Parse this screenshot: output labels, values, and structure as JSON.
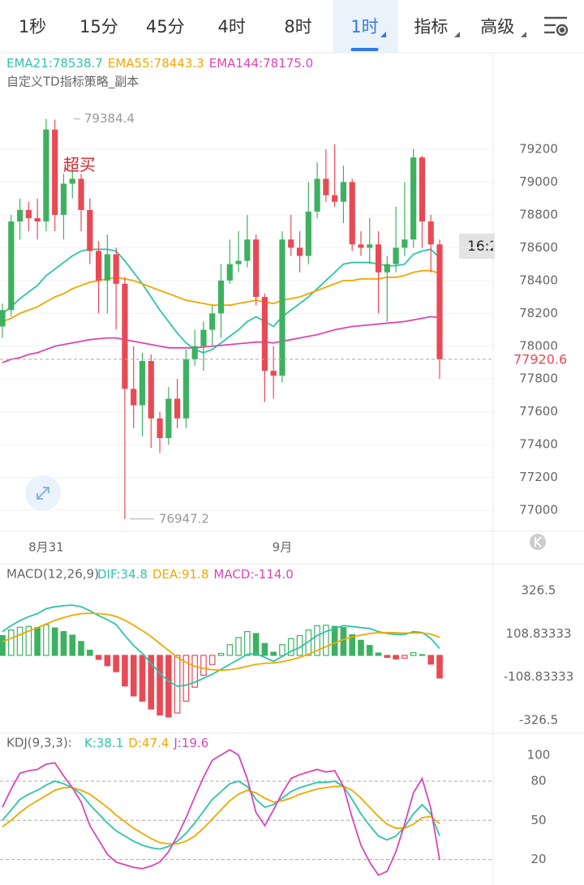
{
  "tabs": {
    "items": [
      "1秒",
      "15分",
      "45分",
      "4时",
      "8时",
      "1时",
      "指标",
      "高级"
    ],
    "selected": 5
  },
  "chart_data": [
    {
      "type": "candlestick",
      "subtitle": "自定义TD指标策略_副本",
      "annotation": "超买",
      "time_label": "16:2",
      "categories": [
        null,
        null,
        null,
        null,
        null,
        "8月31",
        null,
        null,
        null,
        null,
        null,
        null,
        null,
        null,
        null,
        null,
        null,
        null,
        null,
        null,
        null,
        null,
        null,
        null,
        null,
        null,
        null,
        null,
        null,
        null,
        null,
        null,
        "9月",
        null,
        null,
        null,
        null,
        null,
        null,
        null,
        null,
        null,
        null,
        null,
        null,
        null,
        null,
        null,
        null,
        null,
        null
      ],
      "open": [
        78120,
        78220,
        78760,
        78830,
        78780,
        78760,
        79320,
        78800,
        78990,
        79020,
        78830,
        78580,
        78400,
        78560,
        78380,
        77740,
        77640,
        77910,
        77560,
        77440,
        77680,
        77560,
        77920,
        78000,
        78100,
        78200,
        78400,
        78500,
        78520,
        78650,
        78300,
        77850,
        77820,
        78650,
        78600,
        78550,
        78820,
        79020,
        78920,
        78880,
        79000,
        78620,
        78600,
        78620,
        78450,
        78500,
        78600,
        78650,
        79150,
        78760,
        78620
      ],
      "high": [
        78260,
        78800,
        78900,
        78880,
        78900,
        79384.4,
        79380,
        79050,
        79100,
        79050,
        78900,
        78640,
        78680,
        78600,
        78420,
        78000,
        77960,
        77950,
        77600,
        77750,
        77800,
        77980,
        78100,
        78150,
        78250,
        78500,
        78650,
        78700,
        78800,
        78680,
        78320,
        78000,
        78700,
        78800,
        78700,
        79000,
        79120,
        79200,
        79230,
        79100,
        79020,
        78700,
        78780,
        78700,
        78550,
        78850,
        79000,
        79200,
        79160,
        78800,
        78650
      ],
      "low": [
        78050,
        78180,
        78650,
        78700,
        78650,
        78700,
        78700,
        78650,
        78900,
        78700,
        78500,
        78200,
        78200,
        78100,
        76947.2,
        77500,
        77450,
        77380,
        77350,
        77400,
        77500,
        77500,
        77880,
        77850,
        78000,
        78050,
        78380,
        78450,
        78480,
        78250,
        77660,
        77680,
        77780,
        78550,
        78450,
        78500,
        78780,
        78880,
        78850,
        78750,
        78580,
        78550,
        78500,
        78200,
        78150,
        78450,
        78550,
        78600,
        78600,
        78450,
        77800
      ],
      "close": [
        78220,
        78760,
        78830,
        78780,
        78760,
        79320,
        78800,
        78990,
        79020,
        78830,
        78580,
        78400,
        78560,
        78380,
        77740,
        77640,
        77910,
        77560,
        77440,
        77680,
        77560,
        77920,
        78000,
        78100,
        78200,
        78400,
        78500,
        78520,
        78650,
        78300,
        77850,
        77820,
        78650,
        78600,
        78550,
        78820,
        79020,
        78920,
        78880,
        79000,
        78620,
        78600,
        78620,
        78450,
        78500,
        78600,
        78650,
        79150,
        78760,
        78620,
        77920.6
      ],
      "up_color": "#3db160",
      "down_color": "#e84a55",
      "series": [
        {
          "name": "EMA21:78538.7",
          "color": "#2ec4a9",
          "values": [
            78200,
            78240,
            78290,
            78330,
            78370,
            78430,
            78470,
            78510,
            78550,
            78580,
            78590,
            78590,
            78590,
            78580,
            78520,
            78450,
            78380,
            78300,
            78220,
            78150,
            78080,
            78020,
            77980,
            77960,
            77980,
            78020,
            78060,
            78100,
            78150,
            78180,
            78150,
            78120,
            78180,
            78220,
            78260,
            78300,
            78350,
            78400,
            78450,
            78500,
            78510,
            78510,
            78510,
            78500,
            78490,
            78490,
            78500,
            78560,
            78580,
            78590,
            78538.7
          ]
        },
        {
          "name": "EMA55:78443.3",
          "color": "#f0a800",
          "values": [
            78150,
            78170,
            78200,
            78220,
            78240,
            78270,
            78300,
            78320,
            78350,
            78370,
            78390,
            78400,
            78410,
            78420,
            78410,
            78400,
            78380,
            78360,
            78340,
            78320,
            78300,
            78280,
            78270,
            78260,
            78250,
            78250,
            78250,
            78260,
            78270,
            78280,
            78270,
            78260,
            78280,
            78290,
            78300,
            78320,
            78340,
            78360,
            78380,
            78400,
            78400,
            78410,
            78410,
            78410,
            78420,
            78420,
            78430,
            78450,
            78460,
            78460,
            78443.3
          ]
        },
        {
          "name": "EMA144:78175.0",
          "color": "#d946b5",
          "values": [
            77900,
            77920,
            77930,
            77950,
            77960,
            77980,
            78000,
            78010,
            78020,
            78030,
            78040,
            78045,
            78050,
            78050,
            78040,
            78030,
            78020,
            78010,
            78000,
            77990,
            77990,
            77990,
            77990,
            77995,
            78000,
            78005,
            78010,
            78015,
            78020,
            78025,
            78025,
            78020,
            78030,
            78040,
            78050,
            78060,
            78070,
            78085,
            78100,
            78110,
            78120,
            78125,
            78130,
            78135,
            78140,
            78145,
            78150,
            78160,
            78170,
            78180,
            78175.0
          ]
        }
      ],
      "ylim": [
        76872,
        79788
      ],
      "yticks": [
        77000,
        77200,
        77400,
        77600,
        77800,
        78000,
        78200,
        78400,
        78600,
        78800,
        79000,
        79200
      ],
      "grid": true
    },
    {
      "type": "macd",
      "title": "MACD(12,26,9)",
      "series": [
        {
          "name": "DIF:34.8",
          "type": "line",
          "color": "#2ec4a9",
          "values": [
            120,
            150,
            175,
            195,
            210,
            235,
            245,
            250,
            253,
            245,
            225,
            200,
            180,
            155,
            100,
            50,
            10,
            -40,
            -90,
            -130,
            -155,
            -150,
            -135,
            -115,
            -95,
            -70,
            -45,
            -20,
            5,
            10,
            -10,
            -30,
            -5,
            20,
            40,
            70,
            100,
            120,
            135,
            150,
            145,
            140,
            135,
            120,
            110,
            105,
            105,
            120,
            115,
            85,
            34.8
          ]
        },
        {
          "name": "DEA:91.8",
          "type": "line",
          "color": "#f0a800",
          "values": [
            70,
            86,
            104,
            122,
            140,
            158,
            176,
            190,
            202,
            210,
            212,
            210,
            206,
            196,
            177,
            152,
            125,
            95,
            60,
            25,
            -10,
            -35,
            -55,
            -65,
            -72,
            -75,
            -72,
            -65,
            -55,
            -45,
            -40,
            -38,
            -32,
            -22,
            -10,
            6,
            25,
            44,
            62,
            80,
            93,
            102,
            110,
            114,
            115,
            114,
            112,
            113,
            113,
            107,
            91.8
          ]
        },
        {
          "name": "MACD:-114.0",
          "type": "bar",
          "color": "#d946b5",
          "values": [
            100,
            128,
            142,
            146,
            140,
            154,
            138,
            120,
            102,
            70,
            26,
            -20,
            -52,
            -82,
            -154,
            -204,
            -230,
            -270,
            -300,
            -310,
            -290,
            -230,
            -160,
            -100,
            -46,
            10,
            54,
            90,
            120,
            110,
            60,
            16,
            54,
            84,
            100,
            128,
            150,
            152,
            146,
            140,
            104,
            76,
            50,
            12,
            -10,
            -18,
            -14,
            14,
            4,
            -44,
            -114
          ]
        }
      ],
      "up_color": "#3db160",
      "down_color": "#e84a55",
      "ylim": [
        -388,
        453
      ],
      "yticks": [
        326.5,
        108.83333,
        -108.83333,
        -326.5
      ]
    },
    {
      "type": "kdj",
      "title": "KDJ(9,3,3):",
      "series": [
        {
          "name": "K:38.1",
          "color": "#2ec4a9",
          "values": [
            50,
            58,
            66,
            70,
            73,
            77,
            80,
            78,
            75,
            70,
            62,
            55,
            48,
            42,
            38,
            34,
            31,
            29,
            28,
            30,
            34,
            40,
            48,
            57,
            66,
            72,
            78,
            80,
            76,
            66,
            60,
            62,
            67,
            72,
            75,
            77,
            79,
            79,
            80,
            76,
            66,
            55,
            46,
            38,
            35,
            38,
            45,
            55,
            62,
            55,
            38.1
          ]
        },
        {
          "name": "D:47.4",
          "color": "#f0a800",
          "values": [
            45,
            50,
            56,
            61,
            65,
            69,
            73,
            75,
            75,
            73,
            70,
            65,
            60,
            54,
            49,
            44,
            40,
            36,
            33,
            32,
            32,
            34,
            38,
            44,
            51,
            58,
            65,
            70,
            73,
            71,
            67,
            64,
            65,
            67,
            70,
            72,
            74,
            75,
            76,
            76,
            73,
            67,
            60,
            53,
            47,
            44,
            44,
            47,
            52,
            53,
            47.4
          ]
        },
        {
          "name": "J:19.6",
          "color": "#d946b5",
          "values": [
            60,
            74,
            86,
            88,
            89,
            93,
            94,
            84,
            75,
            64,
            46,
            35,
            24,
            18,
            16,
            14,
            13,
            15,
            18,
            26,
            38,
            52,
            68,
            83,
            96,
            100,
            104,
            100,
            82,
            56,
            46,
            58,
            71,
            82,
            85,
            87,
            89,
            87,
            88,
            76,
            52,
            31,
            18,
            8,
            11,
            26,
            47,
            71,
            82,
            59,
            19.6
          ]
        }
      ],
      "ylim": [
        0.5,
        116
      ],
      "yticks": [
        100,
        80,
        50,
        20
      ],
      "grid": true
    }
  ]
}
